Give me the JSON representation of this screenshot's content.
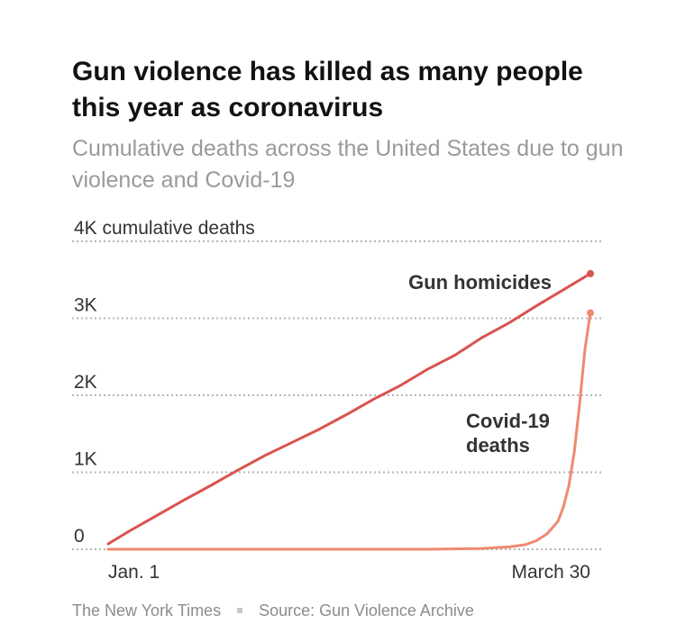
{
  "title": "Gun violence has killed as many people this year as coronavirus",
  "subtitle": "Cumulative deaths across the United States due to gun violence and Covid-19",
  "footer": {
    "publisher": "The New York Times",
    "source": "Source: Gun Violence Archive"
  },
  "chart_data": {
    "type": "line",
    "ylabel": "",
    "ylim": [
      0,
      4000
    ],
    "yticks": [
      {
        "value": 0,
        "label": "0"
      },
      {
        "value": 1000,
        "label": "1K"
      },
      {
        "value": 2000,
        "label": "2K"
      },
      {
        "value": 3000,
        "label": "3K"
      },
      {
        "value": 4000,
        "label": "4K cumulative deaths"
      }
    ],
    "xlim": [
      1,
      90
    ],
    "xticks": [
      {
        "value": 1,
        "label": "Jan. 1"
      },
      {
        "value": 90,
        "label": "March 30"
      }
    ],
    "grid": true,
    "colors": {
      "gun": "#d9534f",
      "covid": "#ef8a70",
      "grid": "#b5b5b5",
      "text": "#333333"
    },
    "series": [
      {
        "name": "Gun homicides",
        "key": "gun",
        "x": [
          1,
          5,
          10,
          15,
          20,
          25,
          30,
          35,
          40,
          45,
          50,
          55,
          60,
          65,
          70,
          75,
          80,
          85,
          90
        ],
        "values": [
          70,
          240,
          440,
          640,
          830,
          1030,
          1220,
          1390,
          1560,
          1750,
          1950,
          2130,
          2340,
          2520,
          2750,
          2940,
          3160,
          3370,
          3580
        ]
      },
      {
        "name": "Covid-19\ndeaths",
        "key": "covid",
        "x": [
          1,
          20,
          40,
          60,
          70,
          75,
          78,
          80,
          82,
          84,
          85,
          86,
          87,
          88,
          89,
          90
        ],
        "values": [
          0,
          0,
          0,
          0,
          10,
          30,
          60,
          110,
          200,
          360,
          540,
          820,
          1250,
          1880,
          2600,
          3070
        ]
      }
    ]
  }
}
